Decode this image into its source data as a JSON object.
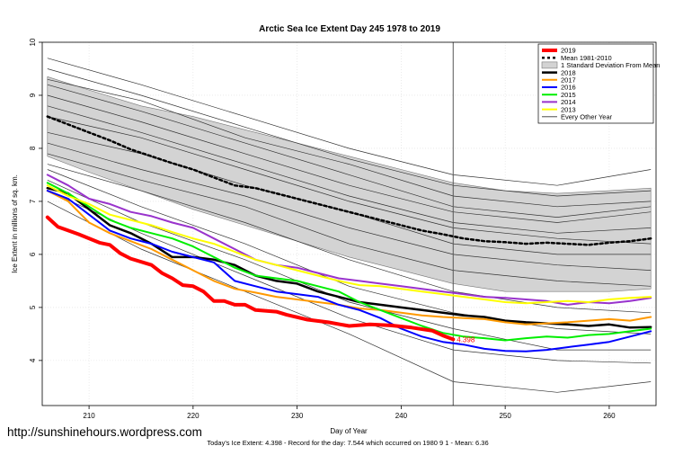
{
  "chart_data": {
    "type": "line",
    "title": "Arctic Sea Ice Extent Day 245 1978 to 2019",
    "xlabel": "Day of Year",
    "ylabel": "Ice Extent in millions of sq. km.",
    "xlim": [
      205.5,
      264.5
    ],
    "ylim": [
      3.15,
      10
    ],
    "x_ticks": [
      210,
      220,
      230,
      240,
      250,
      260
    ],
    "y_ticks": [
      4,
      5,
      6,
      7,
      8,
      9,
      10
    ],
    "grid": true,
    "legend_position": "top-right",
    "vertical_marker_day": 245,
    "current_value_label": "4.398",
    "series": [
      {
        "name": "2019",
        "color": "#ff0000",
        "width": 4,
        "dash": "",
        "x": [
          206,
          207,
          209,
          211,
          212,
          213,
          214,
          216,
          217,
          218,
          219,
          220,
          221,
          222,
          223,
          224,
          225,
          226,
          228,
          229,
          231,
          233,
          235,
          237,
          239,
          241,
          243,
          244,
          245
        ],
        "y": [
          6.7,
          6.52,
          6.38,
          6.22,
          6.18,
          6.02,
          5.92,
          5.8,
          5.65,
          5.55,
          5.42,
          5.4,
          5.3,
          5.12,
          5.12,
          5.05,
          5.05,
          4.95,
          4.92,
          4.86,
          4.77,
          4.72,
          4.65,
          4.68,
          4.66,
          4.62,
          4.56,
          4.47,
          4.398
        ]
      },
      {
        "name": "Mean 1981-2010",
        "color": "#000000",
        "width": 2.5,
        "dash": "3,3",
        "x": [
          206,
          208,
          210,
          212,
          214,
          216,
          218,
          220,
          222,
          224,
          226,
          228,
          230,
          232,
          234,
          236,
          238,
          240,
          242,
          244,
          246,
          248,
          250,
          252,
          254,
          256,
          258,
          260,
          262,
          264
        ],
        "y": [
          8.6,
          8.45,
          8.3,
          8.15,
          7.98,
          7.85,
          7.72,
          7.6,
          7.45,
          7.3,
          7.25,
          7.15,
          7.05,
          6.95,
          6.85,
          6.75,
          6.65,
          6.55,
          6.45,
          6.38,
          6.3,
          6.25,
          6.23,
          6.2,
          6.22,
          6.2,
          6.18,
          6.22,
          6.25,
          6.3
        ]
      },
      {
        "name": "2018",
        "color": "#000000",
        "width": 2.5,
        "dash": "",
        "x": [
          206,
          208,
          210,
          212,
          214,
          216,
          218,
          220,
          222,
          224,
          226,
          228,
          230,
          232,
          234,
          236,
          238,
          240,
          242,
          244,
          246,
          248,
          250,
          252,
          254,
          256,
          258,
          260,
          262,
          264
        ],
        "y": [
          7.25,
          7.15,
          6.85,
          6.55,
          6.4,
          6.2,
          5.95,
          5.95,
          5.9,
          5.8,
          5.6,
          5.5,
          5.45,
          5.3,
          5.2,
          5.1,
          5.05,
          5.0,
          4.95,
          4.9,
          4.85,
          4.82,
          4.75,
          4.72,
          4.7,
          4.68,
          4.65,
          4.68,
          4.62,
          4.63
        ]
      },
      {
        "name": "2017",
        "color": "#ff9900",
        "width": 2,
        "dash": "",
        "x": [
          206,
          208,
          210,
          212,
          214,
          216,
          218,
          220,
          222,
          224,
          226,
          228,
          230,
          232,
          234,
          236,
          238,
          240,
          242,
          244,
          246,
          248,
          250,
          252,
          254,
          256,
          258,
          260,
          262,
          264
        ],
        "y": [
          7.2,
          7.0,
          6.6,
          6.4,
          6.25,
          6.1,
          5.9,
          5.7,
          5.5,
          5.35,
          5.28,
          5.2,
          5.15,
          5.1,
          5.05,
          4.98,
          4.95,
          4.9,
          4.85,
          4.82,
          4.8,
          4.78,
          4.72,
          4.68,
          4.7,
          4.72,
          4.75,
          4.78,
          4.75,
          4.82
        ]
      },
      {
        "name": "2016",
        "color": "#0000ff",
        "width": 2,
        "dash": "",
        "x": [
          206,
          208,
          210,
          212,
          214,
          216,
          218,
          220,
          222,
          224,
          226,
          228,
          230,
          232,
          234,
          236,
          238,
          240,
          242,
          244,
          246,
          248,
          250,
          252,
          254,
          256,
          258,
          260,
          262,
          264
        ],
        "y": [
          7.2,
          7.05,
          6.75,
          6.45,
          6.3,
          6.2,
          6.05,
          5.95,
          5.85,
          5.5,
          5.4,
          5.3,
          5.25,
          5.2,
          5.05,
          4.95,
          4.8,
          4.6,
          4.45,
          4.35,
          4.3,
          4.22,
          4.18,
          4.17,
          4.2,
          4.25,
          4.3,
          4.35,
          4.45,
          4.55
        ]
      },
      {
        "name": "2015",
        "color": "#00ee00",
        "width": 2,
        "dash": "",
        "x": [
          206,
          208,
          210,
          212,
          214,
          216,
          218,
          220,
          222,
          224,
          226,
          228,
          230,
          232,
          234,
          236,
          238,
          240,
          242,
          244,
          246,
          248,
          250,
          252,
          254,
          256,
          258,
          260,
          262,
          264
        ],
        "y": [
          7.35,
          7.15,
          6.9,
          6.65,
          6.5,
          6.4,
          6.3,
          6.15,
          5.95,
          5.75,
          5.6,
          5.55,
          5.5,
          5.4,
          5.3,
          5.1,
          4.95,
          4.8,
          4.65,
          4.52,
          4.45,
          4.42,
          4.38,
          4.42,
          4.45,
          4.43,
          4.48,
          4.5,
          4.55,
          4.6
        ]
      },
      {
        "name": "2014",
        "color": "#9933cc",
        "width": 2,
        "dash": "",
        "x": [
          206,
          208,
          210,
          212,
          214,
          216,
          218,
          220,
          222,
          224,
          226,
          228,
          230,
          232,
          234,
          236,
          238,
          240,
          242,
          244,
          246,
          248,
          250,
          252,
          254,
          256,
          258,
          260,
          262,
          264
        ],
        "y": [
          7.5,
          7.3,
          7.05,
          6.95,
          6.8,
          6.72,
          6.6,
          6.5,
          6.3,
          6.1,
          5.9,
          5.8,
          5.75,
          5.65,
          5.55,
          5.5,
          5.45,
          5.4,
          5.35,
          5.3,
          5.25,
          5.2,
          5.18,
          5.15,
          5.12,
          5.05,
          5.1,
          5.08,
          5.12,
          5.18
        ]
      },
      {
        "name": "2013",
        "color": "#ffff00",
        "width": 2,
        "dash": "",
        "x": [
          206,
          208,
          210,
          212,
          214,
          216,
          218,
          220,
          222,
          224,
          226,
          228,
          230,
          232,
          234,
          236,
          238,
          240,
          242,
          244,
          246,
          248,
          250,
          252,
          254,
          256,
          258,
          260,
          262,
          264
        ],
        "y": [
          7.3,
          7.1,
          6.95,
          6.75,
          6.65,
          6.55,
          6.42,
          6.3,
          6.2,
          6.05,
          5.9,
          5.8,
          5.7,
          5.6,
          5.5,
          5.42,
          5.4,
          5.35,
          5.3,
          5.25,
          5.2,
          5.15,
          5.1,
          5.08,
          5.1,
          5.12,
          5.1,
          5.15,
          5.18,
          5.2
        ]
      }
    ],
    "std_band": {
      "name": "1 Standard Deviation From Mean",
      "color": "#d3d3d3",
      "x": [
        206,
        210,
        215,
        220,
        225,
        230,
        235,
        240,
        245,
        250,
        255,
        260,
        264
      ],
      "upper": [
        9.35,
        9.1,
        8.8,
        8.6,
        8.35,
        8.1,
        7.85,
        7.6,
        7.35,
        7.2,
        7.15,
        7.2,
        7.25
      ],
      "lower": [
        7.85,
        7.55,
        7.2,
        6.85,
        6.55,
        6.25,
        5.95,
        5.7,
        5.45,
        5.3,
        5.3,
        5.3,
        5.35
      ]
    },
    "every_other_year": {
      "name": "Every Other Year",
      "color": "#333333",
      "x": [
        206,
        215,
        225,
        235,
        245,
        255,
        264
      ],
      "lines": [
        [
          9.7,
          9.2,
          8.6,
          8.0,
          7.5,
          7.3,
          7.6
        ],
        [
          9.5,
          9.0,
          8.4,
          7.8,
          7.3,
          7.1,
          7.2
        ],
        [
          9.3,
          8.9,
          8.2,
          7.7,
          7.1,
          6.9,
          7.0
        ],
        [
          9.2,
          8.7,
          8.1,
          7.5,
          6.9,
          6.7,
          6.9
        ],
        [
          9.0,
          8.5,
          7.9,
          7.3,
          6.8,
          6.6,
          6.8
        ],
        [
          8.8,
          8.3,
          7.7,
          7.1,
          6.6,
          6.4,
          6.5
        ],
        [
          8.6,
          8.2,
          7.6,
          7.0,
          6.5,
          6.3,
          6.2
        ],
        [
          8.3,
          7.9,
          7.3,
          6.8,
          6.2,
          6.0,
          6.0
        ],
        [
          8.1,
          7.6,
          7.1,
          6.5,
          6.0,
          5.8,
          5.7
        ],
        [
          7.9,
          7.4,
          6.9,
          6.2,
          5.7,
          5.5,
          5.4
        ],
        [
          7.7,
          7.2,
          6.6,
          5.9,
          5.3,
          5.0,
          4.9
        ],
        [
          7.6,
          6.9,
          6.2,
          5.4,
          4.9,
          4.6,
          4.5
        ],
        [
          7.4,
          6.6,
          5.9,
          5.1,
          4.6,
          4.2,
          4.2
        ],
        [
          7.2,
          6.4,
          5.6,
          4.8,
          4.2,
          4.0,
          3.95
        ],
        [
          7.0,
          6.1,
          5.3,
          4.5,
          3.6,
          3.4,
          3.6
        ]
      ]
    }
  },
  "legend": {
    "items": [
      {
        "label": "2019",
        "color": "#ff0000",
        "kind": "line",
        "width": 4,
        "dash": ""
      },
      {
        "label": "Mean 1981-2010",
        "color": "#000000",
        "kind": "line",
        "width": 2.5,
        "dash": "3,3"
      },
      {
        "label": "1 Standard Deviation From Mean",
        "color": "#d3d3d3",
        "kind": "box",
        "width": 0,
        "dash": ""
      },
      {
        "label": "2018",
        "color": "#000000",
        "kind": "line",
        "width": 2.5,
        "dash": ""
      },
      {
        "label": "2017",
        "color": "#ff9900",
        "kind": "line",
        "width": 2,
        "dash": ""
      },
      {
        "label": "2016",
        "color": "#0000ff",
        "kind": "line",
        "width": 2,
        "dash": ""
      },
      {
        "label": "2015",
        "color": "#00ee00",
        "kind": "line",
        "width": 2,
        "dash": ""
      },
      {
        "label": "2014",
        "color": "#9933cc",
        "kind": "line",
        "width": 2,
        "dash": ""
      },
      {
        "label": "2013",
        "color": "#ffff00",
        "kind": "line",
        "width": 2,
        "dash": ""
      },
      {
        "label": "Every Other Year",
        "color": "#333333",
        "kind": "line",
        "width": 0.8,
        "dash": ""
      }
    ]
  },
  "watermark": "http://sunshinehours.wordpress.com",
  "footer": "Today's Ice Extent: 4.398  - Record for the day: 7.544 which occurred on 1980 9 1  - Mean: 6.36"
}
